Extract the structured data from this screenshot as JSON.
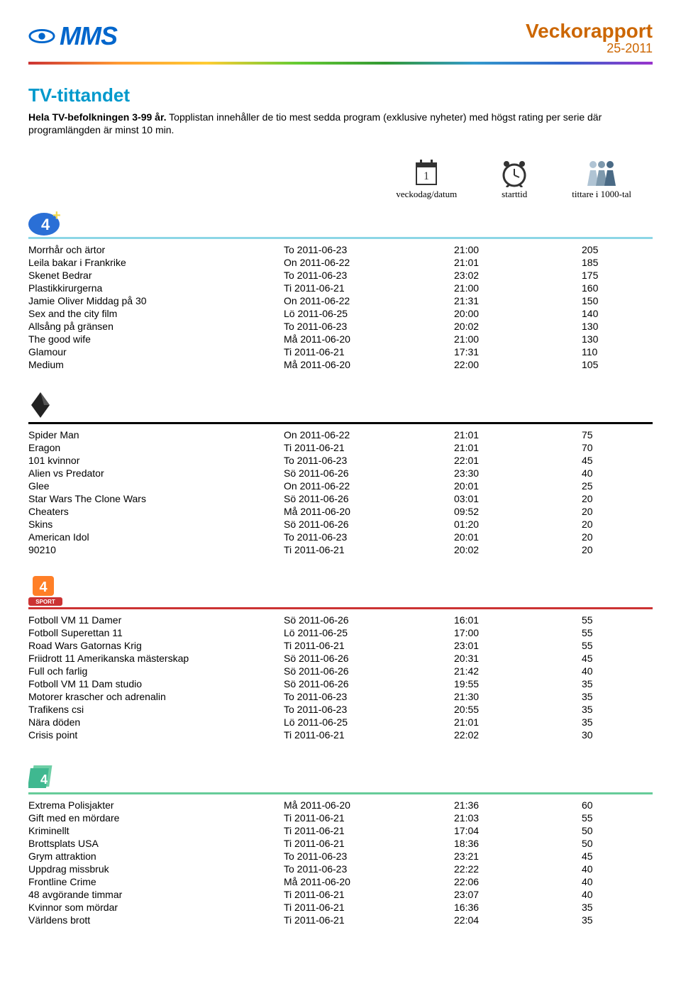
{
  "header": {
    "brand": "MMS",
    "title": "Veckorapport",
    "subtitle": "25-2011",
    "brand_color": "#0066cc",
    "title_color": "#cc6600"
  },
  "section": {
    "title": "TV-tittandet",
    "intro_bold": "Hela TV-befolkningen 3-99 år.",
    "intro_rest": " Topplistan innehåller de tio mest sedda program (exklusive nyheter) med högst rating per serie där programlängden är minst 10 min."
  },
  "legend": {
    "date": "veckodag/datum",
    "time": "starttid",
    "viewers": "tittare i 1000-tal"
  },
  "channels": [
    {
      "id": "4plus",
      "underline_color": "#8cd6e6",
      "rows": [
        {
          "name": "Morrhår och ärtor",
          "date": "To 2011-06-23",
          "time": "21:00",
          "viewers": "205"
        },
        {
          "name": "Leila bakar i Frankrike",
          "date": "On 2011-06-22",
          "time": "21:01",
          "viewers": "185"
        },
        {
          "name": "Skenet Bedrar",
          "date": "To 2011-06-23",
          "time": "23:02",
          "viewers": "175"
        },
        {
          "name": "Plastikkirurgerna",
          "date": "Ti 2011-06-21",
          "time": "21:00",
          "viewers": "160"
        },
        {
          "name": "Jamie Oliver Middag på 30",
          "date": "On 2011-06-22",
          "time": "21:31",
          "viewers": "150"
        },
        {
          "name": "Sex and the city film",
          "date": "Lö 2011-06-25",
          "time": "20:00",
          "viewers": "140"
        },
        {
          "name": "Allsång på gränsen",
          "date": "To 2011-06-23",
          "time": "20:02",
          "viewers": "130"
        },
        {
          "name": "The good wife",
          "date": "Må 2011-06-20",
          "time": "21:00",
          "viewers": "130"
        },
        {
          "name": "Glamour",
          "date": "Ti 2011-06-21",
          "time": "17:31",
          "viewers": "110"
        },
        {
          "name": "Medium",
          "date": "Må 2011-06-20",
          "time": "22:00",
          "viewers": "105"
        }
      ]
    },
    {
      "id": "six",
      "underline_color": "#000000",
      "rows": [
        {
          "name": "Spider Man",
          "date": "On 2011-06-22",
          "time": "21:01",
          "viewers": "75"
        },
        {
          "name": "Eragon",
          "date": "Ti 2011-06-21",
          "time": "21:01",
          "viewers": "70"
        },
        {
          "name": "101 kvinnor",
          "date": "To 2011-06-23",
          "time": "22:01",
          "viewers": "45"
        },
        {
          "name": "Alien vs Predator",
          "date": "Sö 2011-06-26",
          "time": "23:30",
          "viewers": "40"
        },
        {
          "name": "Glee",
          "date": "On 2011-06-22",
          "time": "20:01",
          "viewers": "25"
        },
        {
          "name": "Star Wars The Clone Wars",
          "date": "Sö 2011-06-26",
          "time": "03:01",
          "viewers": "20"
        },
        {
          "name": "Cheaters",
          "date": "Må 2011-06-20",
          "time": "09:52",
          "viewers": "20"
        },
        {
          "name": "Skins",
          "date": "Sö 2011-06-26",
          "time": "01:20",
          "viewers": "20"
        },
        {
          "name": "American Idol",
          "date": "To 2011-06-23",
          "time": "20:01",
          "viewers": "20"
        },
        {
          "name": "90210",
          "date": "Ti 2011-06-21",
          "time": "20:02",
          "viewers": "20"
        }
      ]
    },
    {
      "id": "4sport",
      "underline_color": "#cc3333",
      "rows": [
        {
          "name": "Fotboll VM 11 Damer",
          "date": "Sö 2011-06-26",
          "time": "16:01",
          "viewers": "55"
        },
        {
          "name": "Fotboll Superettan 11",
          "date": "Lö 2011-06-25",
          "time": "17:00",
          "viewers": "55"
        },
        {
          "name": "Road Wars Gatornas Krig",
          "date": "Ti 2011-06-21",
          "time": "23:01",
          "viewers": "55"
        },
        {
          "name": "Friidrott 11 Amerikanska mästerskap",
          "date": "Sö 2011-06-26",
          "time": "20:31",
          "viewers": "45"
        },
        {
          "name": "Full och farlig",
          "date": "Sö 2011-06-26",
          "time": "21:42",
          "viewers": "40"
        },
        {
          "name": "Fotboll VM 11 Dam studio",
          "date": "Sö 2011-06-26",
          "time": "19:55",
          "viewers": "35"
        },
        {
          "name": "Motorer krascher och adrenalin",
          "date": "To 2011-06-23",
          "time": "21:30",
          "viewers": "35"
        },
        {
          "name": "Trafikens csi",
          "date": "To 2011-06-23",
          "time": "20:55",
          "viewers": "35"
        },
        {
          "name": "Nära döden",
          "date": "Lö 2011-06-25",
          "time": "21:01",
          "viewers": "35"
        },
        {
          "name": "Crisis point",
          "date": "Ti 2011-06-21",
          "time": "22:02",
          "viewers": "30"
        }
      ]
    },
    {
      "id": "4fakta",
      "underline_color": "#66cc99",
      "rows": [
        {
          "name": "Extrema Polisjakter",
          "date": "Må 2011-06-20",
          "time": "21:36",
          "viewers": "60"
        },
        {
          "name": "Gift med en mördare",
          "date": "Ti 2011-06-21",
          "time": "21:03",
          "viewers": "55"
        },
        {
          "name": "Kriminellt",
          "date": "Ti 2011-06-21",
          "time": "17:04",
          "viewers": "50"
        },
        {
          "name": "Brottsplats USA",
          "date": "Ti 2011-06-21",
          "time": "18:36",
          "viewers": "50"
        },
        {
          "name": "Grym attraktion",
          "date": "To 2011-06-23",
          "time": "23:21",
          "viewers": "45"
        },
        {
          "name": "Uppdrag missbruk",
          "date": "To 2011-06-23",
          "time": "22:22",
          "viewers": "40"
        },
        {
          "name": "Frontline Crime",
          "date": "Må 2011-06-20",
          "time": "22:06",
          "viewers": "40"
        },
        {
          "name": "48 avgörande timmar",
          "date": "Ti 2011-06-21",
          "time": "23:07",
          "viewers": "40"
        },
        {
          "name": "Kvinnor som mördar",
          "date": "Ti 2011-06-21",
          "time": "16:36",
          "viewers": "35"
        },
        {
          "name": "Världens brott",
          "date": "Ti 2011-06-21",
          "time": "22:04",
          "viewers": "35"
        }
      ]
    }
  ]
}
